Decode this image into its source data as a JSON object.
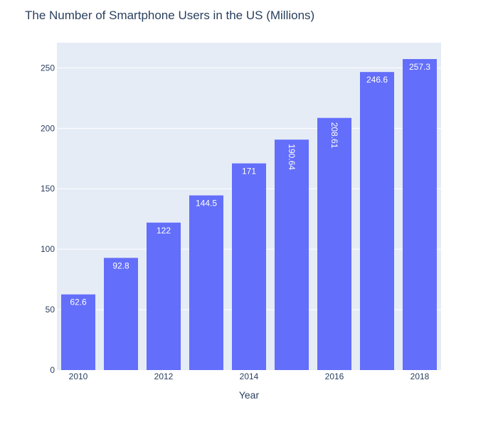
{
  "chart_data": {
    "type": "bar",
    "title": "The Number of Smartphone Users in the US (Millions)",
    "xlabel": "Year",
    "ylabel": "",
    "categories": [
      2010,
      2011,
      2012,
      2013,
      2014,
      2015,
      2016,
      2017,
      2018
    ],
    "values": [
      62.6,
      92.8,
      122,
      144.5,
      171,
      190.64,
      208.61,
      246.6,
      257.3
    ],
    "value_labels": [
      "62.6",
      "92.8",
      "122",
      "144.5",
      "171",
      "190.64",
      "208.61",
      "246.6",
      "257.3"
    ],
    "label_orientation": [
      "horizontal",
      "horizontal",
      "horizontal",
      "horizontal",
      "horizontal",
      "vertical",
      "vertical",
      "horizontal",
      "horizontal"
    ],
    "x_tick_labels": [
      "2010",
      "2012",
      "2014",
      "2016",
      "2018"
    ],
    "x_tick_values": [
      2010,
      2012,
      2014,
      2016,
      2018
    ],
    "y_tick_labels": [
      "0",
      "50",
      "100",
      "150",
      "200",
      "250"
    ],
    "y_tick_values": [
      0,
      50,
      100,
      150,
      200,
      250
    ],
    "ylim": [
      0,
      270.84
    ],
    "grid": true,
    "colors": {
      "bar": "#636efa",
      "plot_bg": "#e5ecf6",
      "grid": "#ffffff",
      "text": "#2a3f5f"
    }
  }
}
